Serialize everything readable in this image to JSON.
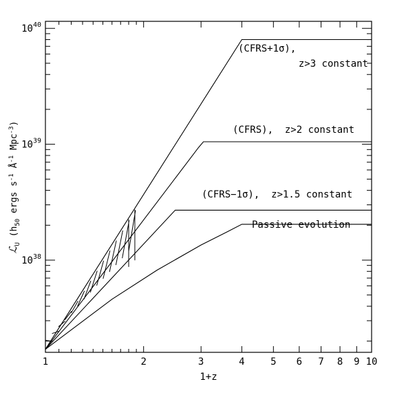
{
  "chart_data": {
    "type": "line",
    "xscale": "log",
    "yscale": "log",
    "xlim": [
      1,
      10
    ],
    "ylim": [
      1.6e+37,
      1.15e+40
    ],
    "xlabel": "1+z",
    "ylabel_prefix": "ℒ",
    "ylabel_sub": "U",
    "ylabel_rest": " (h",
    "ylabel_h_sub": "50",
    "ylabel_units": " ergs s",
    "ylabel_units_tail": " Mpc",
    "ylabel_exp1": "-1",
    "ylabel_A": " Å",
    "ylabel_exp2": "-1",
    "ylabel_exp3": "-3",
    "ylabel_close": ")",
    "x_ticks": [
      {
        "value": 1,
        "label": "1"
      },
      {
        "value": 2,
        "label": "2"
      },
      {
        "value": 3,
        "label": "3"
      },
      {
        "value": 4,
        "label": "4"
      },
      {
        "value": 5,
        "label": "5"
      },
      {
        "value": 6,
        "label": "6"
      },
      {
        "value": 7,
        "label": "7"
      },
      {
        "value": 8,
        "label": "8"
      },
      {
        "value": 9,
        "label": "9"
      },
      {
        "value": 10,
        "label": "10"
      }
    ],
    "y_ticks": [
      {
        "value": 1e+38,
        "base": "10",
        "exp": "38"
      },
      {
        "value": 1e+39,
        "base": "10",
        "exp": "39"
      },
      {
        "value": 1e+40,
        "base": "10",
        "exp": "40"
      }
    ],
    "series": [
      {
        "x": [
          1,
          4,
          10
        ],
        "y": [
          1.7e+37,
          8e+39,
          8e+39
        ]
      },
      {
        "x": [
          1,
          2.95,
          3.05,
          10
        ],
        "y": [
          1.7e+37,
          9.4e+38,
          1.05e+39,
          1.05e+39
        ]
      },
      {
        "x": [
          1,
          2.5,
          10
        ],
        "y": [
          1.7e+37,
          2.7e+38,
          2.7e+38
        ]
      },
      {
        "x": [
          1,
          1.6,
          2.2,
          3.0,
          3.6,
          4.0,
          4.5,
          10
        ],
        "y": [
          1.7e+37,
          4.6e+37,
          8.2e+37,
          1.35e+38,
          1.75e+38,
          2.04e+38,
          2.04e+38,
          2.04e+38
        ]
      }
    ],
    "hatch": {
      "x_start": 1.0,
      "x_end": 1.88,
      "count": 14
    },
    "annotations": [
      {
        "id": "ann-cfrs-plus",
        "lines": [
          "(CFRS+1σ),",
          "z>3 constant"
        ]
      },
      {
        "id": "ann-cfrs",
        "lines": [
          "(CFRS),  z>2 constant"
        ]
      },
      {
        "id": "ann-cfrs-minus",
        "lines": [
          "(CFRS−1σ),  z>1.5 constant"
        ]
      },
      {
        "id": "ann-passive",
        "lines": [
          "Passive evolution"
        ]
      }
    ]
  }
}
